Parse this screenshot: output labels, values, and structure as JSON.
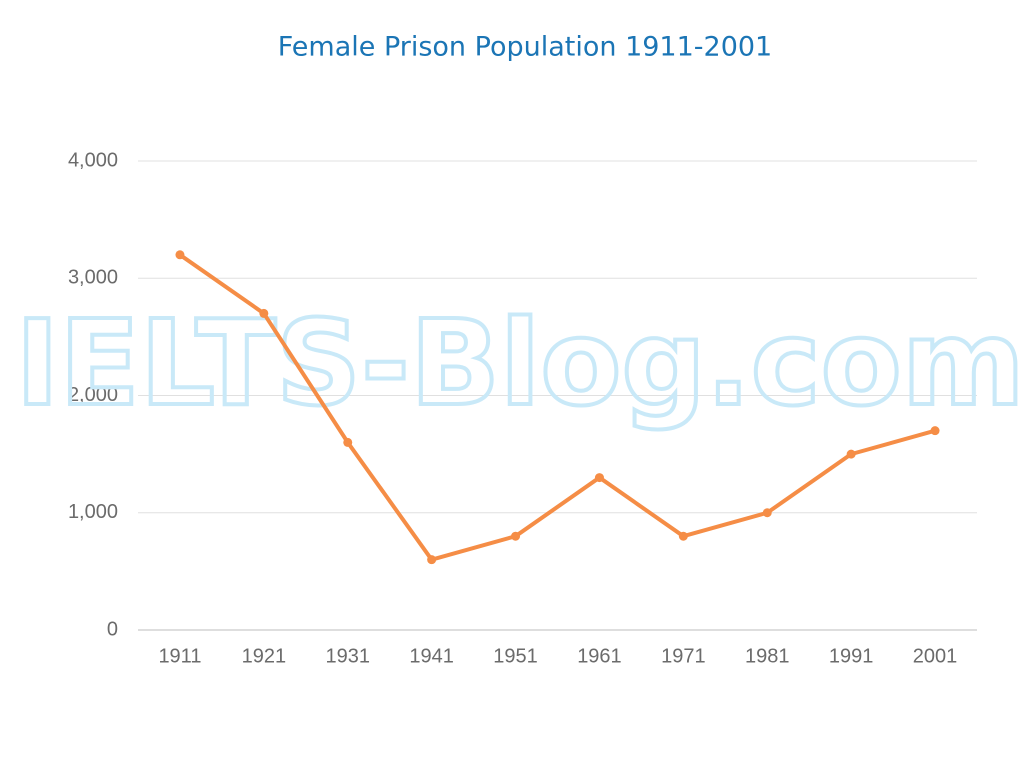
{
  "chart_data": {
    "type": "line",
    "title": "Female Prison Population 1911-2001",
    "watermark": "IELTS-Blog.com",
    "categories": [
      "1911",
      "1921",
      "1931",
      "1941",
      "1951",
      "1961",
      "1971",
      "1981",
      "1991",
      "2001"
    ],
    "series": [
      {
        "color": "#f58d46",
        "values": [
          3200,
          2700,
          1600,
          600,
          800,
          1300,
          800,
          1000,
          1500,
          1700
        ]
      }
    ],
    "ylim": [
      0,
      4000
    ],
    "yticks": [
      0,
      {
        "value": 1000,
        "label": "1,000"
      },
      {
        "value": 2000,
        "label": "2,000"
      },
      {
        "value": 3000,
        "label": "3,000"
      },
      {
        "value": 4000,
        "label": "4,000"
      }
    ],
    "grid": true
  }
}
